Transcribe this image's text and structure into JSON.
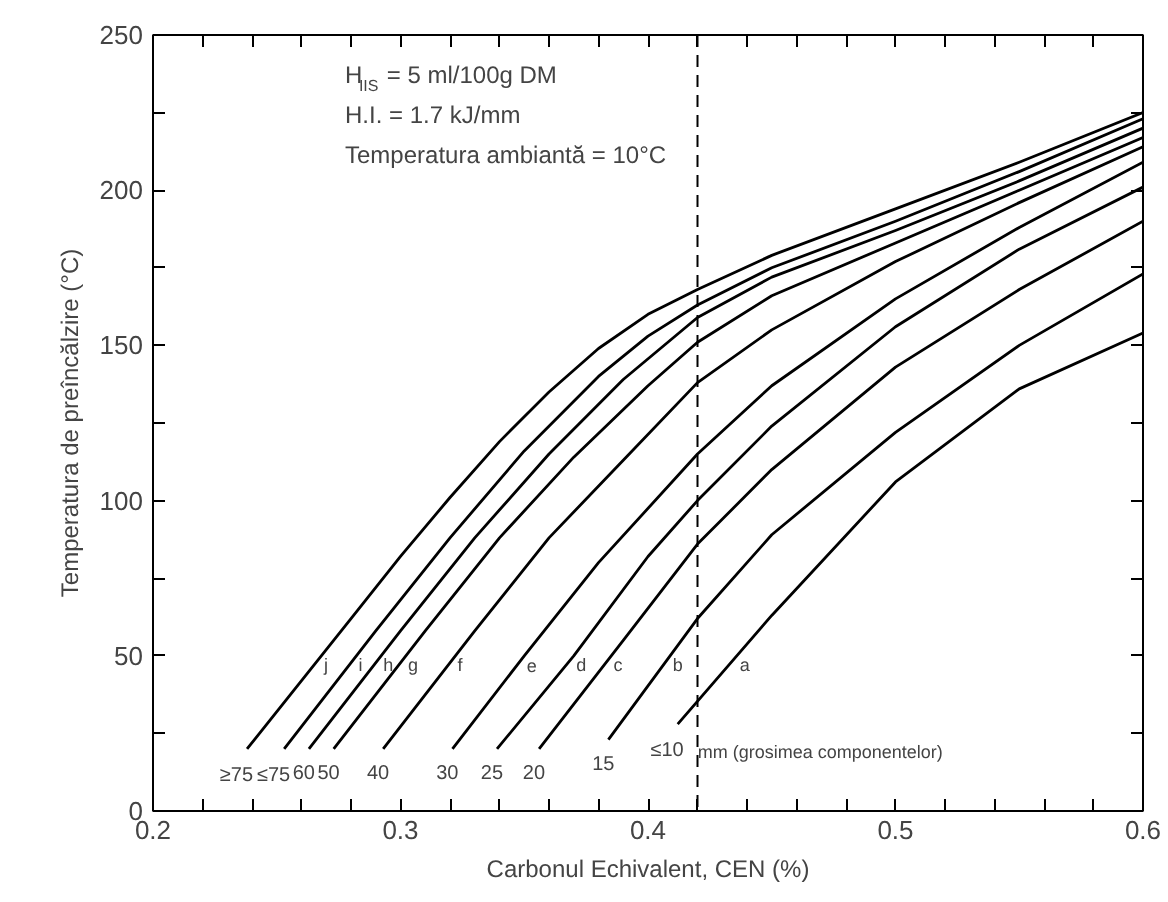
{
  "chart_data": {
    "type": "line",
    "xlabel": "Carbonul Echivalent, CEN (%)",
    "ylabel": "Temperatura de preîncălzire (°C)",
    "legend_title": "mm (grosimea componentelor)",
    "xlim": [
      0.2,
      0.6
    ],
    "ylim": [
      0,
      250
    ],
    "xticks": [
      0.2,
      {
        "value": 0.22,
        "label": null
      },
      {
        "value": 0.24,
        "label": null
      },
      {
        "value": 0.26,
        "label": null
      },
      {
        "value": 0.28,
        "label": null
      },
      0.3,
      {
        "value": 0.32,
        "label": null
      },
      {
        "value": 0.34,
        "label": null
      },
      {
        "value": 0.36,
        "label": null
      },
      {
        "value": 0.38,
        "label": null
      },
      0.4,
      {
        "value": 0.42,
        "label": null
      },
      {
        "value": 0.44,
        "label": null
      },
      {
        "value": 0.46,
        "label": null
      },
      {
        "value": 0.48,
        "label": null
      },
      0.5,
      {
        "value": 0.52,
        "label": null
      },
      {
        "value": 0.54,
        "label": null
      },
      {
        "value": 0.56,
        "label": null
      },
      {
        "value": 0.58,
        "label": null
      },
      0.6
    ],
    "yticks": [
      0,
      {
        "value": 25,
        "label": null
      },
      50,
      {
        "value": 75,
        "label": null
      },
      100,
      {
        "value": 125,
        "label": null
      },
      150,
      {
        "value": 175,
        "label": null
      },
      200,
      {
        "value": 225,
        "label": null
      },
      250
    ],
    "grid": false,
    "legend": false,
    "marker": "none",
    "line_style": "solid",
    "ref_lines": [
      {
        "axis": "x",
        "value": 0.42,
        "label": null,
        "color": "#000000",
        "line_style": "dashed"
      }
    ],
    "annotations": [
      "H$_{IIS}$ = 5 ml/100g DM",
      "H.I. = 1.7 kJ/mm",
      "Temperatura ambiantă = 10°C",
      {
        "text": "j",
        "x": 0.265,
        "y": 47
      },
      {
        "text": "i",
        "x": 0.279,
        "y": 47
      },
      {
        "text": "h",
        "x": 0.289,
        "y": 47
      },
      {
        "text": "g",
        "x": 0.299,
        "y": 47
      },
      {
        "text": "f",
        "x": 0.319,
        "y": 47
      },
      {
        "text": "e",
        "x": 0.347,
        "y": 47
      },
      {
        "text": "d",
        "x": 0.367,
        "y": 47
      },
      {
        "text": "c",
        "x": 0.382,
        "y": 47
      },
      {
        "text": "b",
        "x": 0.406,
        "y": 47
      },
      {
        "text": "a",
        "x": 0.433,
        "y": 47
      }
    ],
    "series": [
      {
        "name": "≥75",
        "color": "#000000",
        "x": [
          0.238,
          0.28,
          0.3,
          0.32,
          0.34,
          0.36,
          0.38,
          0.4,
          0.42,
          0.45,
          0.5,
          0.55,
          0.6
        ],
        "values": [
          20,
          62,
          82,
          101,
          119,
          135,
          149,
          160,
          168,
          179,
          194,
          209,
          225
        ]
      },
      {
        "name": "≤75",
        "color": "#000000",
        "x": [
          0.253,
          0.29,
          0.32,
          0.35,
          0.38,
          0.4,
          0.42,
          0.45,
          0.5,
          0.55,
          0.6
        ],
        "values": [
          20,
          58,
          88,
          116,
          140,
          153,
          163,
          175,
          190,
          206,
          223
        ]
      },
      {
        "name": "60",
        "color": "#000000",
        "x": [
          0.263,
          0.3,
          0.33,
          0.36,
          0.39,
          0.42,
          0.45,
          0.5,
          0.55,
          0.6
        ],
        "values": [
          20,
          58,
          88,
          115,
          139,
          159,
          172,
          187,
          203,
          220
        ]
      },
      {
        "name": "50",
        "color": "#000000",
        "x": [
          0.273,
          0.31,
          0.34,
          0.37,
          0.4,
          0.42,
          0.45,
          0.5,
          0.55,
          0.6
        ],
        "values": [
          20,
          58,
          88,
          114,
          137,
          151,
          166,
          183,
          200,
          217
        ]
      },
      {
        "name": "40",
        "color": "#000000",
        "x": [
          0.293,
          0.33,
          0.36,
          0.39,
          0.42,
          0.45,
          0.5,
          0.55,
          0.6
        ],
        "values": [
          20,
          58,
          88,
          113,
          138,
          155,
          177,
          196,
          214
        ]
      },
      {
        "name": "30",
        "color": "#000000",
        "x": [
          0.321,
          0.35,
          0.38,
          0.42,
          0.45,
          0.5,
          0.55,
          0.6
        ],
        "values": [
          20,
          50,
          80,
          115,
          137,
          165,
          188,
          209
        ]
      },
      {
        "name": "25",
        "color": "#000000",
        "x": [
          0.339,
          0.37,
          0.4,
          0.42,
          0.45,
          0.5,
          0.55,
          0.6
        ],
        "values": [
          20,
          50,
          82,
          100,
          124,
          156,
          181,
          201
        ]
      },
      {
        "name": "20",
        "color": "#000000",
        "x": [
          0.356,
          0.39,
          0.42,
          0.45,
          0.5,
          0.55,
          0.6
        ],
        "values": [
          20,
          55,
          86,
          110,
          143,
          168,
          190
        ]
      },
      {
        "name": "15",
        "color": "#000000",
        "x": [
          0.384,
          0.42,
          0.45,
          0.5,
          0.55,
          0.6
        ],
        "values": [
          23,
          62,
          89,
          122,
          150,
          173
        ]
      },
      {
        "name": "≤10",
        "color": "#000000",
        "x": [
          0.412,
          0.45,
          0.5,
          0.55,
          0.6
        ],
        "values": [
          28,
          63,
          106,
          136,
          154
        ]
      }
    ]
  }
}
